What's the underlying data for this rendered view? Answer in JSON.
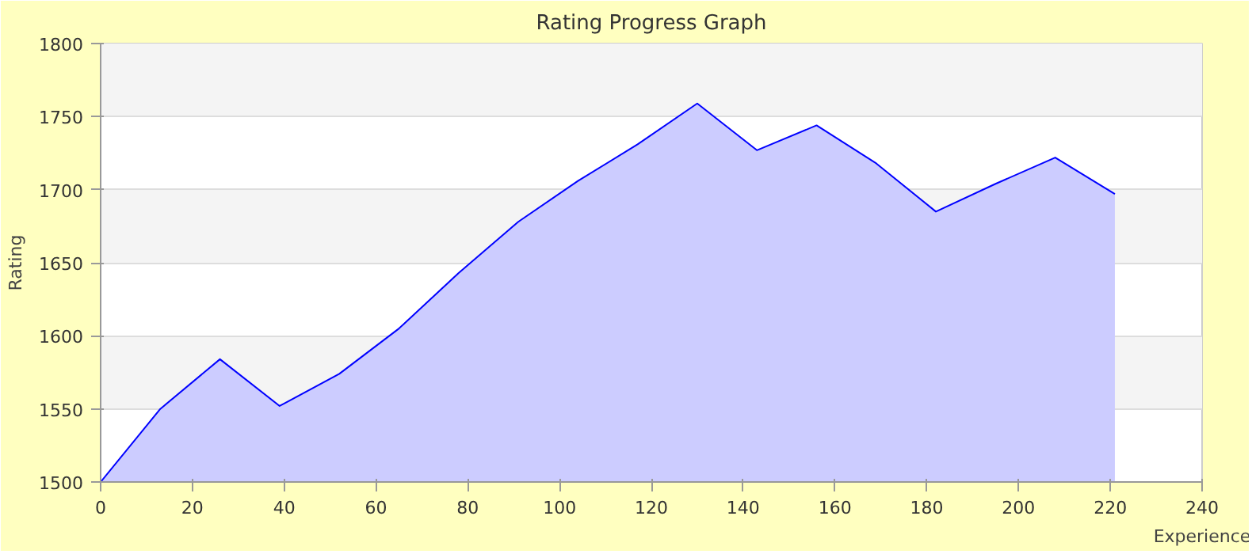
{
  "chart_data": {
    "type": "area",
    "title": "Rating Progress Graph",
    "xlabel": "Experience",
    "ylabel": "Rating",
    "x": [
      0,
      13,
      26,
      39,
      52,
      65,
      78,
      91,
      104,
      117,
      130,
      143,
      156,
      169,
      182,
      195,
      208,
      221
    ],
    "series": [
      {
        "color": "#0000ff",
        "values": [
          1500,
          1550,
          1584,
          1552,
          1574,
          1605,
          1643,
          1678,
          1706,
          1731,
          1759,
          1727,
          1744,
          1718,
          1685,
          1704,
          1722,
          1697
        ]
      }
    ],
    "xlim": [
      0,
      240
    ],
    "xticks": [
      0,
      20,
      40,
      60,
      80,
      100,
      120,
      140,
      160,
      180,
      200,
      220,
      240
    ],
    "ylim": [
      1500,
      1800
    ],
    "yticks": [
      1500,
      1550,
      1600,
      1650,
      1700,
      1750,
      1800
    ],
    "grid": "y"
  }
}
